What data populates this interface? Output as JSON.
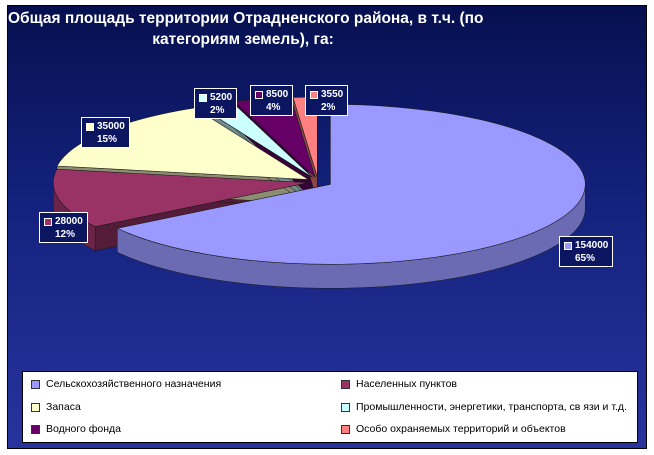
{
  "title_line1": "Общая площадь территории Отрадненского района, в т.ч. (по",
  "title_line2": "категориям земель), га:",
  "chart_data": {
    "type": "pie",
    "title": "Общая площадь территории Отрадненского района, в т.ч. (по категориям земель), га:",
    "three_d": true,
    "exploded": true,
    "legend_position": "bottom",
    "slices": [
      {
        "category": "Сельскохозяйственного назначения",
        "value": 154000,
        "percent_label": "65%",
        "value_label": "154000",
        "color": "#9999ff"
      },
      {
        "category": "Населенных пунктов",
        "value": 28000,
        "percent_label": "12%",
        "value_label": "28000",
        "color": "#993366"
      },
      {
        "category": "Запаса",
        "value": 35000,
        "percent_label": "15%",
        "value_label": "35000",
        "color": "#ffffcc"
      },
      {
        "category": "Промышленности, энергетики, транспорта, св язи и т.д.",
        "value": 5200,
        "percent_label": "2%",
        "value_label": "5200",
        "color": "#ccffff"
      },
      {
        "category": "Водного фонда",
        "value": 8500,
        "percent_label": "4%",
        "value_label": "8500",
        "color": "#660066"
      },
      {
        "category": "Особо охраняемых территорий и объектов",
        "value": 3550,
        "percent_label": "2%",
        "value_label": "3550",
        "color": "#ff8080"
      }
    ]
  }
}
